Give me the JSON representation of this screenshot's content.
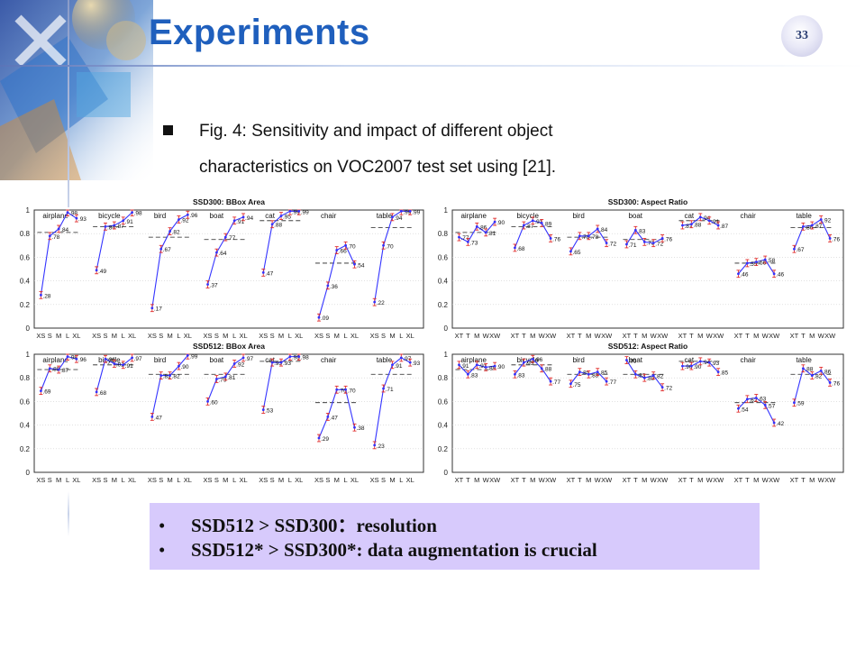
{
  "slide": {
    "title": "Experiments",
    "page_number": "33",
    "bullet_lines": [
      "Fig. 4: Sensitivity and impact of different object",
      "characteristics on VOC2007 test set using [21]."
    ],
    "summary": [
      "SSD512 > SSD300：resolution",
      "SSD512* > SSD300*: data augmentation is crucial"
    ],
    "colors": {
      "title": "#1f5fbd",
      "summary_bg": "#d7cafc",
      "curve": "#3333ff",
      "error_bar": "#e03030",
      "overall": "#222222"
    }
  },
  "chart_data": [
    {
      "type": "line",
      "title": "SSD300: BBox Area",
      "ylim": [
        0,
        1
      ],
      "yticks": [
        "0",
        "0.2",
        "0.4",
        "0.6",
        "0.8",
        "1"
      ],
      "x_ticks": [
        "XS",
        "S",
        "M",
        "L",
        "XL"
      ],
      "groups": [
        {
          "name": "airplane",
          "values": [
            0.28,
            0.78,
            0.84,
            0.98,
            0.93
          ],
          "overall": 0.81
        },
        {
          "name": "bicycle",
          "values": [
            0.49,
            0.86,
            0.87,
            0.91,
            0.98
          ],
          "overall": 0.86
        },
        {
          "name": "bird",
          "values": [
            0.17,
            0.67,
            0.82,
            0.92,
            0.96
          ],
          "overall": 0.77
        },
        {
          "name": "boat",
          "values": [
            0.37,
            0.64,
            0.77,
            0.91,
            0.94
          ],
          "overall": 0.75
        },
        {
          "name": "cat",
          "values": [
            0.47,
            0.88,
            0.95,
            0.99,
            0.99
          ],
          "overall": 0.91
        },
        {
          "name": "chair",
          "values": [
            0.09,
            0.36,
            0.66,
            0.7,
            0.54
          ],
          "overall": 0.55
        },
        {
          "name": "table",
          "values": [
            0.22,
            0.7,
            0.94,
            0.99,
            0.99
          ],
          "overall": 0.85
        }
      ]
    },
    {
      "type": "line",
      "title": "SSD300: Aspect Ratio",
      "ylim": [
        0,
        1
      ],
      "yticks": [
        "0",
        "0.2",
        "0.4",
        "0.6",
        "0.8",
        "1"
      ],
      "x_ticks": [
        "XT",
        "T",
        "M",
        "W",
        "XW"
      ],
      "groups": [
        {
          "name": "airplane",
          "values": [
            0.77,
            0.73,
            0.86,
            0.81,
            0.9
          ],
          "overall": 0.81
        },
        {
          "name": "bicycle",
          "values": [
            0.68,
            0.87,
            0.91,
            0.89,
            0.76
          ],
          "overall": 0.86
        },
        {
          "name": "bird",
          "values": [
            0.65,
            0.78,
            0.78,
            0.84,
            0.72
          ],
          "overall": 0.77
        },
        {
          "name": "boat",
          "values": [
            0.71,
            0.83,
            0.73,
            0.72,
            0.76
          ],
          "overall": 0.75
        },
        {
          "name": "cat",
          "values": [
            0.87,
            0.88,
            0.94,
            0.91,
            0.87
          ],
          "overall": 0.91
        },
        {
          "name": "chair",
          "values": [
            0.46,
            0.55,
            0.56,
            0.58,
            0.46
          ],
          "overall": 0.55
        },
        {
          "name": "table",
          "values": [
            0.67,
            0.86,
            0.87,
            0.92,
            0.76
          ],
          "overall": 0.85
        }
      ]
    },
    {
      "type": "line",
      "title": "SSD512: BBox Area",
      "ylim": [
        0,
        1
      ],
      "yticks": [
        "0",
        "0.2",
        "0.4",
        "0.6",
        "0.8",
        "1"
      ],
      "x_ticks": [
        "XS",
        "S",
        "M",
        "L",
        "XL"
      ],
      "groups": [
        {
          "name": "airplane",
          "values": [
            0.69,
            0.88,
            0.87,
            0.98,
            0.96
          ],
          "overall": 0.87
        },
        {
          "name": "bicycle",
          "values": [
            0.68,
            0.96,
            0.92,
            0.91,
            0.97
          ],
          "overall": 0.91
        },
        {
          "name": "bird",
          "values": [
            0.47,
            0.82,
            0.82,
            0.9,
            0.99
          ],
          "overall": 0.83
        },
        {
          "name": "boat",
          "values": [
            0.6,
            0.79,
            0.81,
            0.92,
            0.97
          ],
          "overall": 0.83
        },
        {
          "name": "cat",
          "values": [
            0.53,
            0.93,
            0.93,
            0.98,
            0.98
          ],
          "overall": 0.94
        },
        {
          "name": "chair",
          "values": [
            0.29,
            0.47,
            0.7,
            0.7,
            0.38
          ],
          "overall": 0.59
        },
        {
          "name": "table",
          "values": [
            0.23,
            0.71,
            0.91,
            0.97,
            0.93
          ],
          "overall": 0.83
        }
      ]
    },
    {
      "type": "line",
      "title": "SSD512: Aspect Ratio",
      "ylim": [
        0,
        1
      ],
      "yticks": [
        "0",
        "0.2",
        "0.4",
        "0.6",
        "0.8",
        "1"
      ],
      "x_ticks": [
        "XT",
        "T",
        "M",
        "W",
        "XW"
      ],
      "groups": [
        {
          "name": "airplane",
          "values": [
            0.91,
            0.83,
            0.91,
            0.89,
            0.9
          ],
          "overall": 0.87
        },
        {
          "name": "bicycle",
          "values": [
            0.83,
            0.93,
            0.96,
            0.88,
            0.77
          ],
          "overall": 0.91
        },
        {
          "name": "bird",
          "values": [
            0.75,
            0.85,
            0.83,
            0.85,
            0.77
          ],
          "overall": 0.83
        },
        {
          "name": "boat",
          "values": [
            0.95,
            0.83,
            0.8,
            0.82,
            0.72
          ],
          "overall": 0.83
        },
        {
          "name": "cat",
          "values": [
            0.9,
            0.9,
            0.94,
            0.93,
            0.85
          ],
          "overall": 0.94
        },
        {
          "name": "chair",
          "values": [
            0.54,
            0.62,
            0.63,
            0.57,
            0.42
          ],
          "overall": 0.59
        },
        {
          "name": "table",
          "values": [
            0.59,
            0.88,
            0.82,
            0.86,
            0.76
          ],
          "overall": 0.83
        }
      ]
    }
  ]
}
